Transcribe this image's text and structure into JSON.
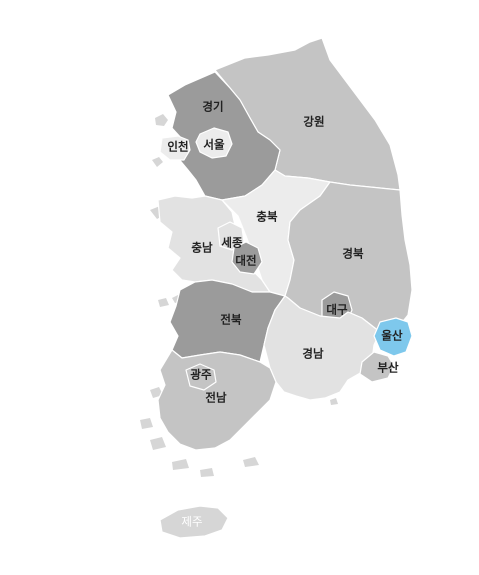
{
  "colors": {
    "background": "#ffffff",
    "dark": "#9b9b9b",
    "mid": "#c4c4c4",
    "light": "#e2e2e2",
    "lighter": "#ececec",
    "highlight": "#7ec8ec",
    "island": "#d6d6d6"
  },
  "regions": [
    {
      "id": "gangwon",
      "label": "강원",
      "tone": "mid"
    },
    {
      "id": "gyeonggi",
      "label": "경기",
      "tone": "dark"
    },
    {
      "id": "incheon",
      "label": "인천",
      "tone": "lighter"
    },
    {
      "id": "seoul",
      "label": "서울",
      "tone": "lighter"
    },
    {
      "id": "chungbuk",
      "label": "충북",
      "tone": "lighter"
    },
    {
      "id": "chungnam",
      "label": "충남",
      "tone": "light"
    },
    {
      "id": "sejong",
      "label": "세종",
      "tone": "light"
    },
    {
      "id": "daejeon",
      "label": "대전",
      "tone": "dark"
    },
    {
      "id": "gyeongbuk",
      "label": "경북",
      "tone": "mid"
    },
    {
      "id": "daegu",
      "label": "대구",
      "tone": "dark"
    },
    {
      "id": "jeonbuk",
      "label": "전북",
      "tone": "dark"
    },
    {
      "id": "gyeongnam",
      "label": "경남",
      "tone": "light"
    },
    {
      "id": "ulsan",
      "label": "울산",
      "tone": "highlight"
    },
    {
      "id": "busan",
      "label": "부산",
      "tone": "mid"
    },
    {
      "id": "gwangju",
      "label": "광주",
      "tone": "mid"
    },
    {
      "id": "jeonnam",
      "label": "전남",
      "tone": "mid"
    },
    {
      "id": "jeju",
      "label": "제주",
      "tone": "island"
    }
  ]
}
